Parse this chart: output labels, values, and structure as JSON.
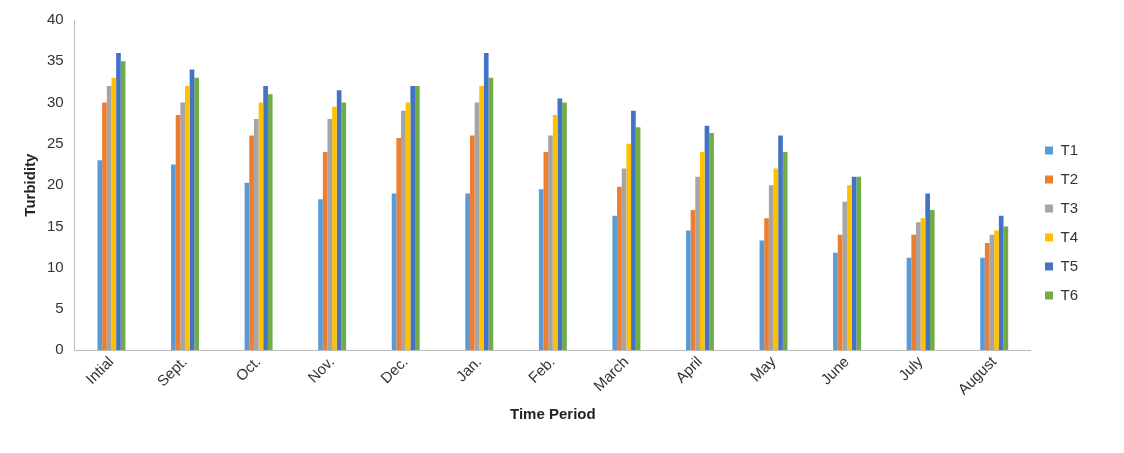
{
  "chart_data": {
    "type": "bar",
    "xlabel": "Time Period",
    "ylabel": "Turbidity",
    "categories": [
      "Intial",
      "Sept.",
      "Oct.",
      "Nov.",
      "Dec.",
      "Jan.",
      "Feb.",
      "March",
      "April",
      "May",
      "June",
      "July",
      "August"
    ],
    "series": [
      {
        "name": "T1",
        "color": "#5b9bd5",
        "values": [
          23,
          22.5,
          20.3,
          18.3,
          19,
          19,
          19.5,
          16.3,
          14.5,
          13.3,
          11.8,
          11.2,
          11.2
        ]
      },
      {
        "name": "T2",
        "color": "#ed7d31",
        "values": [
          30,
          28.5,
          26,
          24,
          25.7,
          26,
          24,
          19.8,
          17,
          16,
          14,
          14,
          13
        ]
      },
      {
        "name": "T3",
        "color": "#a5a5a5",
        "values": [
          32,
          30,
          28,
          28,
          29,
          30,
          26,
          22,
          21,
          20,
          18,
          15.5,
          14
        ]
      },
      {
        "name": "T4",
        "color": "#ffc000",
        "values": [
          33,
          32,
          30,
          29.5,
          30,
          32,
          28.5,
          25,
          24,
          22,
          20,
          16,
          14.5
        ]
      },
      {
        "name": "T5",
        "color": "#4472c4",
        "values": [
          36,
          34,
          32,
          31.5,
          32,
          36,
          30.5,
          29,
          27.2,
          26,
          21,
          19,
          16.3
        ]
      },
      {
        "name": "T6",
        "color": "#70ad47",
        "values": [
          35,
          33,
          31,
          30,
          32,
          33,
          30,
          27,
          26.3,
          24,
          21,
          17,
          15
        ]
      }
    ],
    "ylim": [
      0,
      40
    ],
    "yticks": [
      0,
      5,
      10,
      15,
      20,
      25,
      30,
      35,
      40
    ],
    "grid": false,
    "legend": "right"
  }
}
